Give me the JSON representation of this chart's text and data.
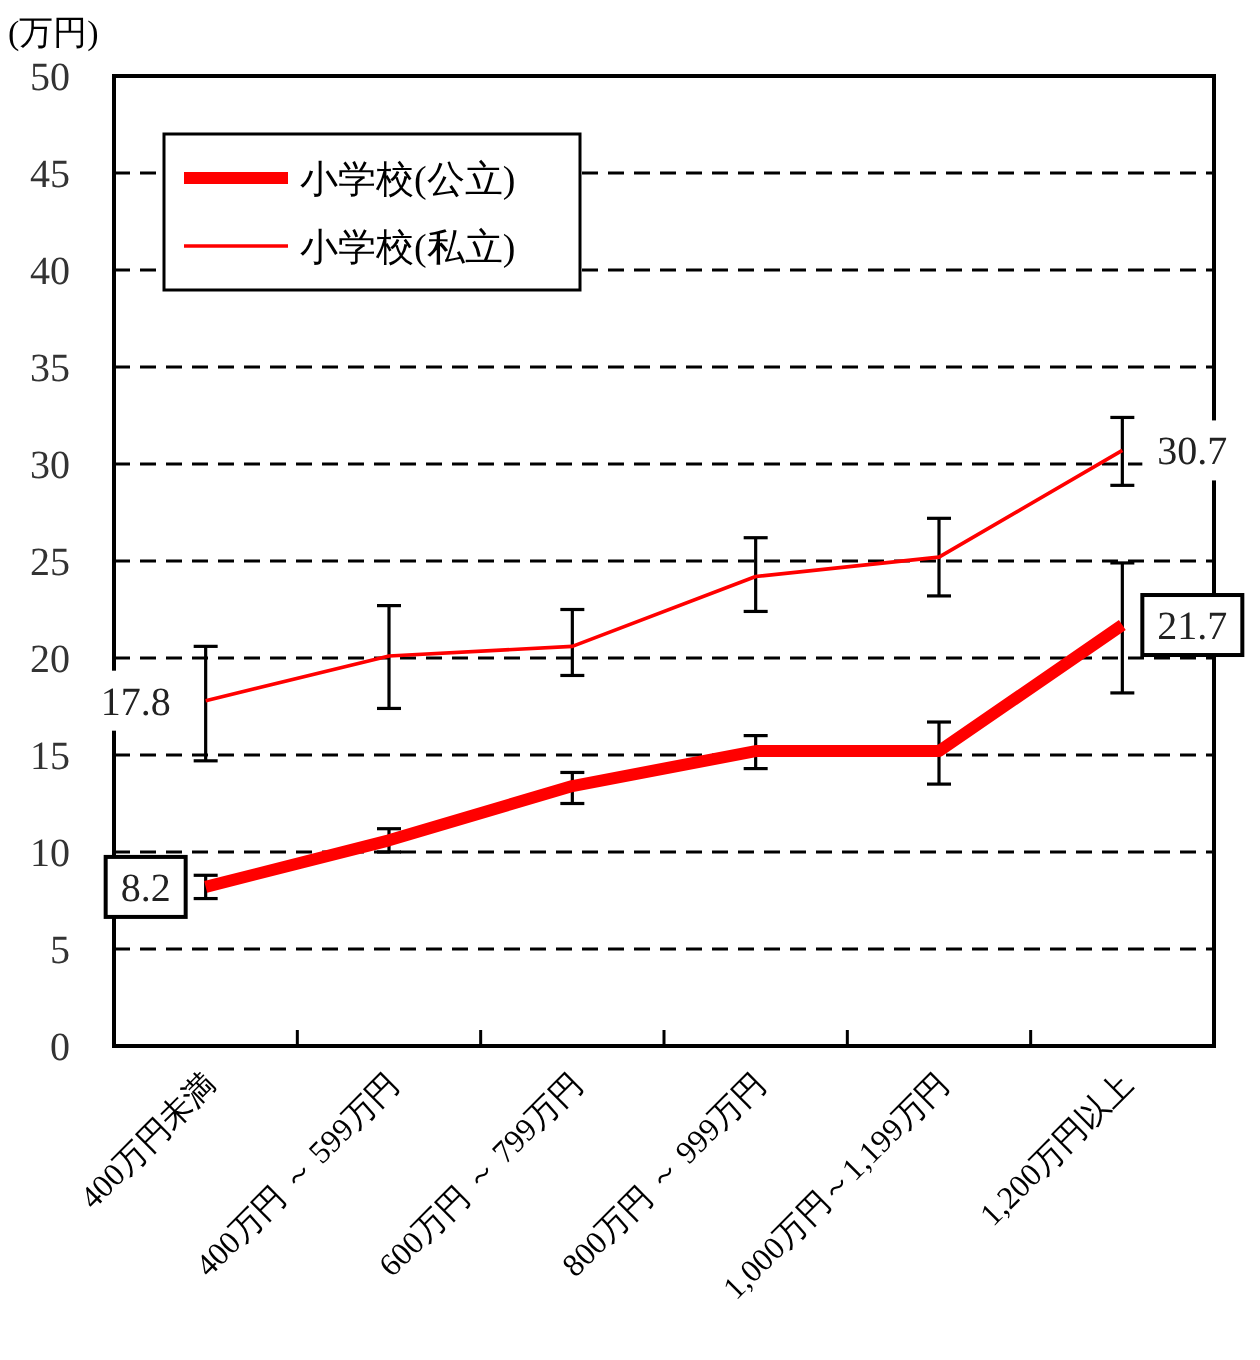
{
  "chart_data": {
    "type": "line",
    "ylabel": "(万円)",
    "categories": [
      "400万円未満",
      "400万円 ～ 599万円",
      "600万円 ～ 799万円",
      "800万円 ～ 999万円",
      "1,000万円～1,199万円",
      "1,200万円以上"
    ],
    "series": [
      {
        "name": "小学校(公立)",
        "color": "#ff0000",
        "values": [
          8.2,
          10.6,
          13.4,
          15.2,
          15.2,
          21.7
        ],
        "errors": [
          [
            7.6,
            8.8
          ],
          [
            10.0,
            11.2
          ],
          [
            12.5,
            14.1
          ],
          [
            14.3,
            16.0
          ],
          [
            13.5,
            16.7
          ],
          [
            18.2,
            24.9
          ]
        ],
        "value_labels": [
          "8.2",
          null,
          null,
          null,
          null,
          "21.7"
        ]
      },
      {
        "name": "小学校(私立)",
        "color": "#ff0000",
        "values": [
          17.8,
          20.1,
          20.6,
          24.2,
          25.2,
          30.7
        ],
        "errors": [
          [
            14.7,
            20.6
          ],
          [
            17.4,
            22.7
          ],
          [
            19.1,
            22.5
          ],
          [
            22.4,
            26.2
          ],
          [
            23.2,
            27.2
          ],
          [
            28.9,
            32.4
          ]
        ],
        "value_labels": [
          "17.8",
          null,
          null,
          null,
          null,
          "30.7"
        ]
      }
    ],
    "ylim": [
      0,
      50
    ],
    "yticks": [
      0,
      5,
      10,
      15,
      20,
      25,
      30,
      35,
      40,
      45,
      50
    ],
    "grid": "y",
    "line_style": "solid",
    "marker": "none",
    "legend": "top left"
  }
}
